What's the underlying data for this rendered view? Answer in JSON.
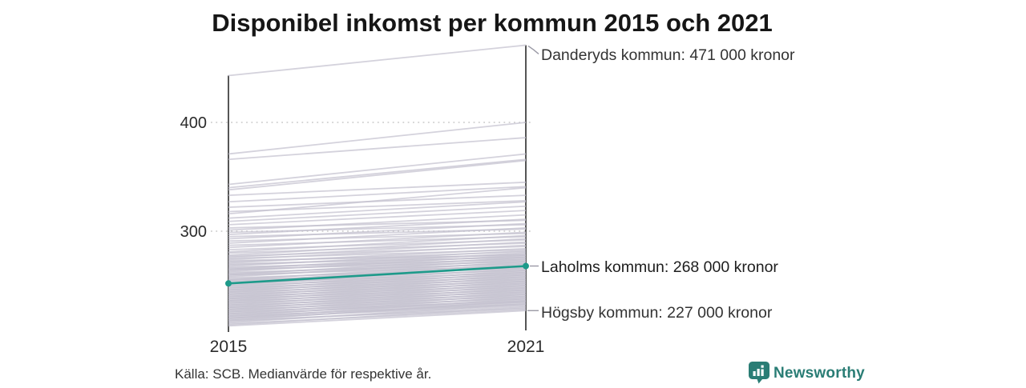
{
  "title": "Disponibel inkomst per kommun 2015 och 2021",
  "source": "Källa: SCB. Medianvärde för respektive år.",
  "branding": {
    "name": "Newsworthy",
    "icon": "bar-chart-speech-bubble",
    "color": "#2a7d75"
  },
  "colors": {
    "highlight": "#1d9a8a",
    "background_line": "#c3c1cf",
    "axis": "#2b2b2b",
    "grid": "#c9c9c9",
    "leader": "#9a99a5",
    "text": "#2b2b2b"
  },
  "chart_data": {
    "type": "line",
    "subtype": "slopegraph",
    "x": [
      2015,
      2021
    ],
    "xtick_labels": [
      "2015",
      "2021"
    ],
    "ytick_values": [
      400,
      300
    ],
    "ytick_labels": [
      "400",
      "300"
    ],
    "y_unit": "tusen kronor (000 kronor)",
    "ylim": [
      207,
      475
    ],
    "grid": "dotted horizontal at y ticks",
    "legend_position": "none",
    "highlighted_series": {
      "name": "Laholms kommun",
      "values": [
        252,
        268
      ],
      "color": "#1d9a8a"
    },
    "top_series": {
      "name": "Danderyds kommun",
      "values": [
        443,
        471
      ]
    },
    "bottom_series": {
      "name": "Högsby kommun",
      "values": [
        213,
        227
      ]
    },
    "annotations": [
      {
        "series": "Danderyds kommun",
        "label": "Danderyds kommun: 471 000 kronor",
        "value_2021": 471
      },
      {
        "series": "Laholms kommun",
        "label": "Laholms kommun: 268 000 kronor",
        "value_2021": 268
      },
      {
        "series": "Högsby kommun",
        "label": "Högsby kommun: 227 000 kronor",
        "value_2021": 227
      }
    ],
    "background_lines": [
      [
        443,
        471
      ],
      [
        371,
        400
      ],
      [
        366,
        386
      ],
      [
        343,
        371
      ],
      [
        340,
        366
      ],
      [
        338,
        365
      ],
      [
        333,
        345
      ],
      [
        327,
        341
      ],
      [
        322,
        333
      ],
      [
        318,
        328
      ],
      [
        316,
        340
      ],
      [
        213,
        227
      ],
      [
        214,
        230
      ],
      [
        215,
        228
      ],
      [
        216,
        233
      ],
      [
        217,
        231
      ],
      [
        218,
        229
      ],
      [
        218,
        236
      ],
      [
        219,
        234
      ],
      [
        220,
        232
      ],
      [
        220,
        238
      ],
      [
        221,
        235
      ],
      [
        222,
        233
      ],
      [
        222,
        240
      ],
      [
        223,
        237
      ],
      [
        224,
        235
      ],
      [
        224,
        242
      ],
      [
        225,
        239
      ],
      [
        226,
        236
      ],
      [
        226,
        244
      ],
      [
        227,
        241
      ],
      [
        228,
        238
      ],
      [
        228,
        246
      ],
      [
        229,
        243
      ],
      [
        230,
        240
      ],
      [
        230,
        248
      ],
      [
        231,
        245
      ],
      [
        232,
        242
      ],
      [
        232,
        250
      ],
      [
        233,
        247
      ],
      [
        234,
        244
      ],
      [
        234,
        252
      ],
      [
        235,
        249
      ],
      [
        236,
        246
      ],
      [
        236,
        254
      ],
      [
        237,
        251
      ],
      [
        238,
        248
      ],
      [
        238,
        256
      ],
      [
        239,
        253
      ],
      [
        240,
        250
      ],
      [
        240,
        258
      ],
      [
        241,
        255
      ],
      [
        242,
        252
      ],
      [
        242,
        260
      ],
      [
        243,
        257
      ],
      [
        244,
        254
      ],
      [
        244,
        262
      ],
      [
        245,
        259
      ],
      [
        246,
        256
      ],
      [
        246,
        264
      ],
      [
        247,
        261
      ],
      [
        248,
        258
      ],
      [
        248,
        266
      ],
      [
        249,
        263
      ],
      [
        250,
        260
      ],
      [
        250,
        268
      ],
      [
        251,
        265
      ],
      [
        252,
        262
      ],
      [
        253,
        270
      ],
      [
        254,
        267
      ],
      [
        255,
        264
      ],
      [
        255,
        272
      ],
      [
        256,
        269
      ],
      [
        257,
        266
      ],
      [
        258,
        274
      ],
      [
        259,
        271
      ],
      [
        260,
        268
      ],
      [
        260,
        276
      ],
      [
        261,
        273
      ],
      [
        262,
        270
      ],
      [
        263,
        278
      ],
      [
        264,
        275
      ],
      [
        265,
        272
      ],
      [
        265,
        280
      ],
      [
        266,
        277
      ],
      [
        267,
        274
      ],
      [
        268,
        282
      ],
      [
        269,
        279
      ],
      [
        270,
        276
      ],
      [
        271,
        284
      ],
      [
        272,
        281
      ],
      [
        273,
        278
      ],
      [
        274,
        287
      ],
      [
        275,
        283
      ],
      [
        276,
        290
      ],
      [
        277,
        286
      ],
      [
        278,
        293
      ],
      [
        280,
        289
      ],
      [
        281,
        296
      ],
      [
        283,
        292
      ],
      [
        285,
        299
      ],
      [
        287,
        295
      ],
      [
        289,
        303
      ],
      [
        291,
        298
      ],
      [
        293,
        307
      ],
      [
        295,
        302
      ],
      [
        297,
        311
      ],
      [
        299,
        306
      ],
      [
        301,
        315
      ],
      [
        303,
        310
      ],
      [
        306,
        319
      ],
      [
        309,
        323
      ],
      [
        312,
        327
      ]
    ]
  }
}
